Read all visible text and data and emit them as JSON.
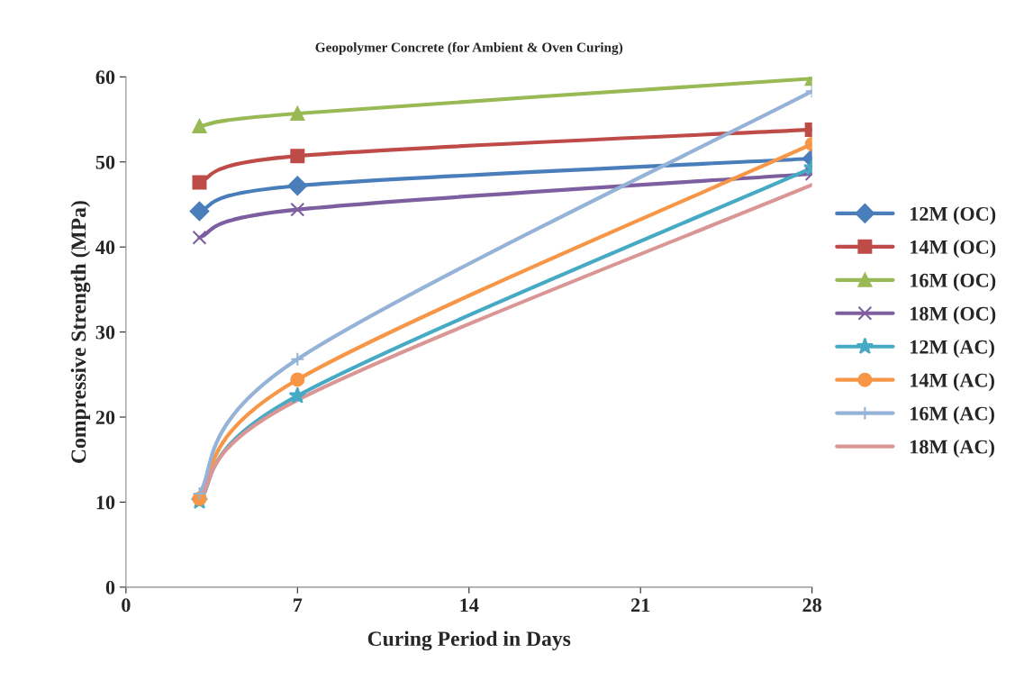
{
  "chart_data": {
    "type": "line",
    "title": "Geopolymer Concrete (for Ambient & Oven Curing)",
    "xlabel": "Curing Period in Days",
    "ylabel": "Compressive Strength (MPa)",
    "x": [
      3,
      7,
      28
    ],
    "xlim": [
      0,
      28
    ],
    "xticks": [
      0,
      7,
      14,
      21,
      28
    ],
    "ylim": [
      0,
      60
    ],
    "yticks": [
      0,
      10,
      20,
      30,
      40,
      50,
      60
    ],
    "grid": false,
    "legend": "right",
    "series": [
      {
        "name": "12M (OC)",
        "color": "#4a7ebb",
        "marker": "diamond",
        "values": [
          44.2,
          47.2,
          50.4
        ]
      },
      {
        "name": "14M (OC)",
        "color": "#be4b48",
        "marker": "square",
        "values": [
          47.6,
          50.7,
          53.8
        ]
      },
      {
        "name": "16M (OC)",
        "color": "#98b954",
        "marker": "triangle",
        "values": [
          54.2,
          55.7,
          59.8
        ]
      },
      {
        "name": "18M (OC)",
        "color": "#7d5fa0",
        "marker": "cross",
        "values": [
          41.1,
          44.4,
          48.6
        ]
      },
      {
        "name": "12M (AC)",
        "color": "#46aac5",
        "marker": "star",
        "values": [
          10.1,
          22.5,
          49.3
        ]
      },
      {
        "name": "14M (AC)",
        "color": "#f79646",
        "marker": "circle",
        "values": [
          10.4,
          24.4,
          52.1
        ]
      },
      {
        "name": "16M (AC)",
        "color": "#95b3d7",
        "marker": "plus",
        "values": [
          11.0,
          26.8,
          58.3
        ]
      },
      {
        "name": "18M (AC)",
        "color": "#d99694",
        "marker": "none",
        "values": [
          10.3,
          22.0,
          47.3
        ]
      }
    ]
  }
}
